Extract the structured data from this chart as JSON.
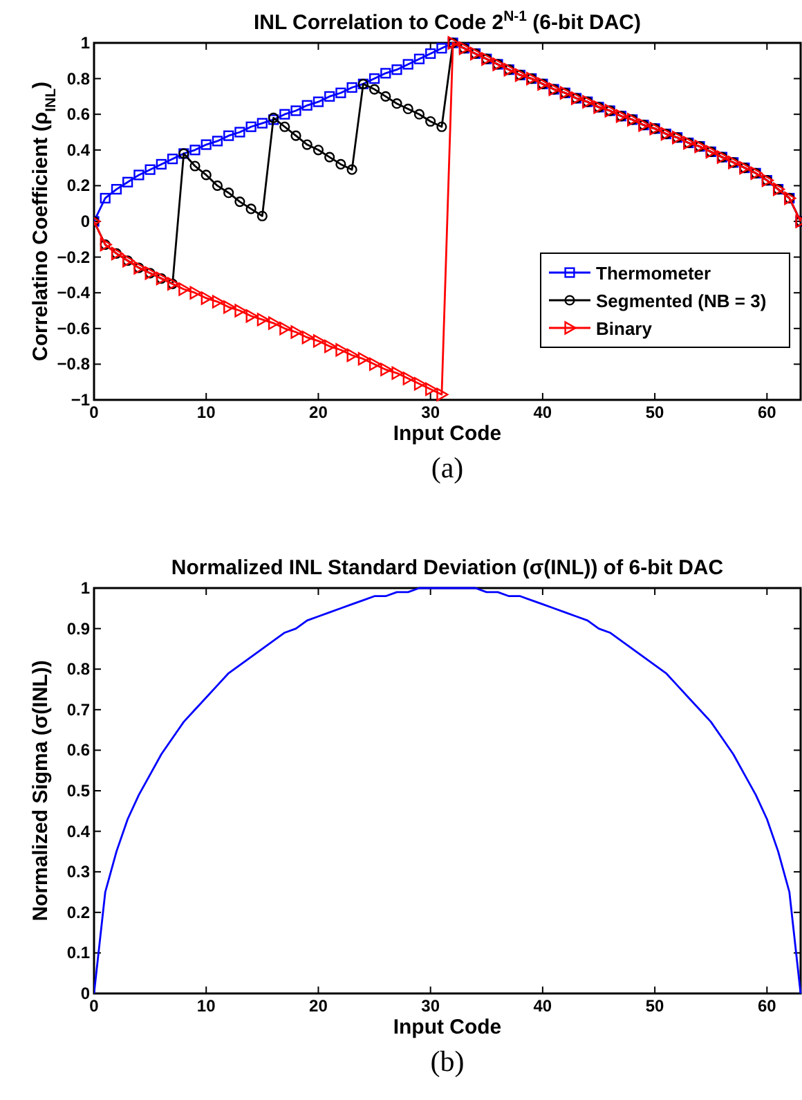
{
  "chart_data": [
    {
      "type": "line",
      "title": "INL Correlation to Code 2$^{N-1}$ (6-bit DAC)",
      "xlabel": "Input Code",
      "ylabel": "Correlatino Coefficient (ρ$_{INL}$)",
      "annotations": [
        "(a)"
      ],
      "x": [
        0,
        1,
        2,
        3,
        4,
        5,
        6,
        7,
        8,
        9,
        10,
        11,
        12,
        13,
        14,
        15,
        16,
        17,
        18,
        19,
        20,
        21,
        22,
        23,
        24,
        25,
        26,
        27,
        28,
        29,
        30,
        31,
        32,
        33,
        34,
        35,
        36,
        37,
        38,
        39,
        40,
        41,
        42,
        43,
        44,
        45,
        46,
        47,
        48,
        49,
        50,
        51,
        52,
        53,
        54,
        55,
        56,
        57,
        58,
        59,
        60,
        61,
        62,
        63
      ],
      "xlim": [
        0,
        63
      ],
      "xticks": [
        0,
        10,
        20,
        30,
        40,
        50,
        60
      ],
      "ylim": [
        -1,
        1
      ],
      "yticks": [
        -1,
        -0.8,
        -0.6,
        -0.4,
        -0.2,
        0,
        0.2,
        0.4,
        0.6,
        0.8,
        1
      ],
      "legend": "bottom right",
      "series": [
        {
          "name": "Thermometer",
          "color": "#0000ff",
          "marker": "square",
          "values": [
            0,
            0.13,
            0.18,
            0.22,
            0.26,
            0.29,
            0.32,
            0.35,
            0.38,
            0.4,
            0.43,
            0.45,
            0.48,
            0.5,
            0.53,
            0.55,
            0.57,
            0.6,
            0.62,
            0.65,
            0.67,
            0.7,
            0.72,
            0.75,
            0.77,
            0.8,
            0.83,
            0.85,
            0.88,
            0.91,
            0.94,
            0.97,
            1,
            0.97,
            0.94,
            0.91,
            0.88,
            0.85,
            0.82,
            0.8,
            0.77,
            0.74,
            0.72,
            0.69,
            0.67,
            0.64,
            0.62,
            0.59,
            0.57,
            0.54,
            0.52,
            0.49,
            0.47,
            0.44,
            0.42,
            0.39,
            0.36,
            0.33,
            0.3,
            0.27,
            0.23,
            0.18,
            0.13,
            0
          ]
        },
        {
          "name": "Segmented (NB = 3)",
          "color": "#000000",
          "marker": "circle",
          "values": [
            0,
            -0.13,
            -0.18,
            -0.22,
            -0.26,
            -0.29,
            -0.32,
            -0.35,
            0.38,
            0.31,
            0.26,
            0.2,
            0.16,
            0.11,
            0.07,
            0.03,
            0.58,
            0.53,
            0.48,
            0.43,
            0.4,
            0.36,
            0.32,
            0.29,
            0.77,
            0.74,
            0.7,
            0.66,
            0.63,
            0.6,
            0.56,
            0.53,
            1,
            0.97,
            0.94,
            0.91,
            0.88,
            0.85,
            0.82,
            0.8,
            0.77,
            0.74,
            0.72,
            0.69,
            0.67,
            0.64,
            0.62,
            0.59,
            0.57,
            0.54,
            0.52,
            0.49,
            0.47,
            0.44,
            0.42,
            0.39,
            0.36,
            0.33,
            0.3,
            0.27,
            0.23,
            0.18,
            0.13,
            0
          ]
        },
        {
          "name": "Binary",
          "color": "#ff0000",
          "marker": "triangle",
          "values": [
            0,
            -0.13,
            -0.18,
            -0.22,
            -0.26,
            -0.29,
            -0.32,
            -0.35,
            -0.38,
            -0.4,
            -0.43,
            -0.45,
            -0.48,
            -0.5,
            -0.53,
            -0.55,
            -0.57,
            -0.6,
            -0.62,
            -0.65,
            -0.67,
            -0.7,
            -0.72,
            -0.75,
            -0.77,
            -0.8,
            -0.83,
            -0.85,
            -0.88,
            -0.91,
            -0.94,
            -0.97,
            1,
            0.97,
            0.94,
            0.91,
            0.88,
            0.85,
            0.82,
            0.8,
            0.77,
            0.74,
            0.72,
            0.69,
            0.67,
            0.64,
            0.62,
            0.59,
            0.57,
            0.54,
            0.52,
            0.49,
            0.47,
            0.44,
            0.42,
            0.39,
            0.36,
            0.33,
            0.3,
            0.27,
            0.23,
            0.18,
            0.13,
            0
          ]
        }
      ]
    },
    {
      "type": "line",
      "title": "Normalized INL Standard Deviation (σ(INL)) of 6-bit DAC",
      "xlabel": "Input Code",
      "ylabel": "Normalized Sigma (σ(INL))",
      "annotations": [
        "(b)"
      ],
      "x": [
        0,
        1,
        2,
        3,
        4,
        5,
        6,
        7,
        8,
        9,
        10,
        11,
        12,
        13,
        14,
        15,
        16,
        17,
        18,
        19,
        20,
        21,
        22,
        23,
        24,
        25,
        26,
        27,
        28,
        29,
        30,
        31,
        32,
        33,
        34,
        35,
        36,
        37,
        38,
        39,
        40,
        41,
        42,
        43,
        44,
        45,
        46,
        47,
        48,
        49,
        50,
        51,
        52,
        53,
        54,
        55,
        56,
        57,
        58,
        59,
        60,
        61,
        62,
        63
      ],
      "xlim": [
        0,
        63
      ],
      "xticks": [
        0,
        10,
        20,
        30,
        40,
        50,
        60
      ],
      "ylim": [
        0,
        1
      ],
      "yticks": [
        0,
        0.1,
        0.2,
        0.3,
        0.4,
        0.5,
        0.6,
        0.7,
        0.8,
        0.9,
        1
      ],
      "series": [
        {
          "color": "#0000ff",
          "values": [
            0,
            0.25,
            0.35,
            0.43,
            0.49,
            0.54,
            0.59,
            0.63,
            0.67,
            0.7,
            0.73,
            0.76,
            0.79,
            0.81,
            0.83,
            0.85,
            0.87,
            0.89,
            0.9,
            0.92,
            0.93,
            0.94,
            0.95,
            0.96,
            0.97,
            0.98,
            0.98,
            0.99,
            0.99,
            1.0,
            1.0,
            1.0,
            1.0,
            1.0,
            1.0,
            0.99,
            0.99,
            0.98,
            0.98,
            0.97,
            0.96,
            0.95,
            0.94,
            0.93,
            0.92,
            0.9,
            0.89,
            0.87,
            0.85,
            0.83,
            0.81,
            0.79,
            0.76,
            0.73,
            0.7,
            0.67,
            0.63,
            0.59,
            0.54,
            0.49,
            0.43,
            0.35,
            0.25,
            0
          ]
        }
      ]
    }
  ]
}
